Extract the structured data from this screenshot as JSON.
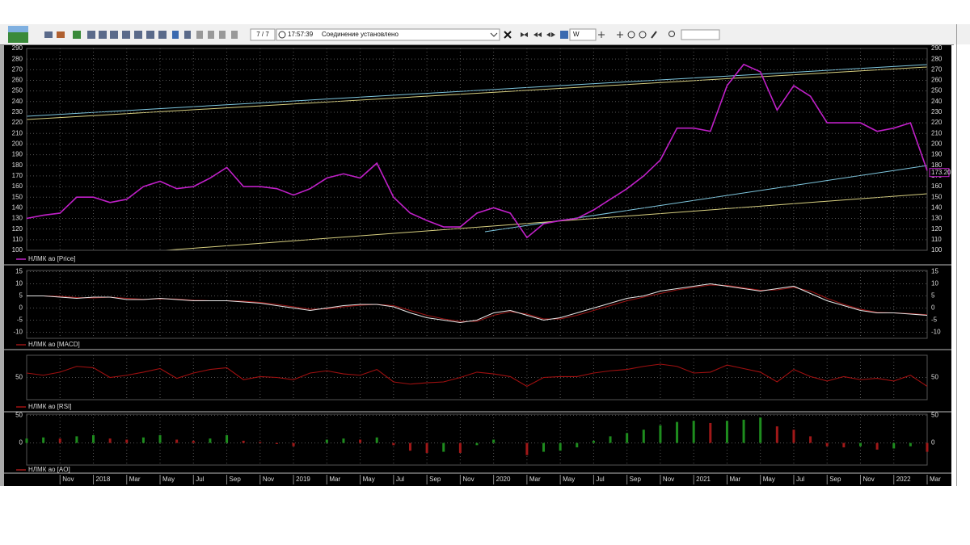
{
  "toolbar": {
    "counter": "7 / 7",
    "time": "17:57:39",
    "status": "Соединение установлено",
    "period": "W"
  },
  "chart_data": [
    {
      "type": "line",
      "series": [
        {
          "name": "НЛМК ао [Price]",
          "color": "#c020c8",
          "values": [
            130,
            133,
            135,
            150,
            150,
            145,
            148,
            160,
            165,
            158,
            160,
            168,
            178,
            160,
            160,
            158,
            152,
            158,
            168,
            172,
            168,
            182,
            150,
            135,
            128,
            122,
            122,
            135,
            140,
            135,
            112,
            125,
            128,
            130,
            138,
            148,
            158,
            170,
            185,
            215,
            215,
            212,
            255,
            275,
            268,
            232,
            255,
            245,
            220,
            220,
            220,
            212,
            215,
            220,
            175
          ]
        }
      ],
      "ylim": [
        100,
        290
      ],
      "yticks": [
        100,
        110,
        120,
        130,
        140,
        150,
        160,
        170,
        180,
        190,
        200,
        210,
        220,
        230,
        240,
        250,
        260,
        270,
        280,
        290
      ],
      "grid": true,
      "last_label": {
        "value": 173.2,
        "label": "173.20"
      }
    },
    {
      "type": "line",
      "series": [
        {
          "name": "НЛМК ао [MACD]",
          "color": "#9a1414",
          "values": [
            5,
            5,
            4.8,
            4.3,
            4.2,
            4.5,
            4,
            3.6,
            3.8,
            3.7,
            3.2,
            3,
            3,
            2.8,
            2.3,
            1.5,
            0.5,
            -0.5,
            -0.3,
            0.5,
            1.2,
            1.5,
            1,
            -1,
            -3,
            -4.5,
            -5.5,
            -5.5,
            -3,
            -1.5,
            -2.5,
            -4.5,
            -4.5,
            -3,
            -1,
            1,
            3,
            4.5,
            6,
            7.5,
            8.5,
            9.5,
            9.3,
            8.3,
            7.3,
            7.5,
            8.5,
            7,
            4,
            1.5,
            -0.5,
            -1.8,
            -2,
            -2.3,
            -2.8
          ]
        },
        {
          "color": "#e6e6e6",
          "values": [
            5,
            5,
            4.5,
            4,
            4.5,
            4.5,
            3.5,
            3.5,
            4,
            3.5,
            3,
            3,
            3,
            2.5,
            2,
            1,
            0,
            -1,
            0,
            1,
            1.5,
            1.5,
            0.5,
            -2,
            -4,
            -5,
            -6,
            -5,
            -2,
            -1,
            -3,
            -5,
            -4,
            -2,
            0,
            2,
            4,
            5,
            7,
            8,
            9,
            10,
            9,
            8,
            7,
            8,
            9,
            6,
            3,
            1,
            -1,
            -2,
            -2,
            -2.5,
            -3
          ]
        }
      ],
      "ylim": [
        -12.5,
        15.5
      ],
      "yticks": [
        -10,
        -5,
        0,
        5,
        10,
        15
      ],
      "grid": true
    },
    {
      "type": "line",
      "series": [
        {
          "name": "НЛМК ао [RSI]",
          "color": "#a01010",
          "values": [
            60,
            55,
            62,
            75,
            72,
            50,
            55,
            62,
            70,
            48,
            60,
            68,
            72,
            45,
            52,
            50,
            45,
            60,
            65,
            58,
            55,
            68,
            40,
            35,
            38,
            40,
            50,
            62,
            58,
            52,
            30,
            50,
            52,
            52,
            60,
            65,
            68,
            75,
            80,
            75,
            60,
            62,
            78,
            70,
            62,
            40,
            68,
            52,
            42,
            52,
            45,
            48,
            42,
            55,
            30
          ]
        }
      ],
      "ylim": [
        0,
        100
      ],
      "yticks": [
        50
      ],
      "grid": true
    },
    {
      "type": "bar",
      "series": [
        {
          "name": "НЛМК ао [AO]",
          "values": [
            8,
            10,
            8,
            12,
            14,
            8,
            6,
            10,
            14,
            6,
            4,
            8,
            14,
            4,
            2,
            -2,
            -6,
            0,
            6,
            8,
            6,
            10,
            -4,
            -14,
            -18,
            -16,
            -18,
            -4,
            6,
            0,
            -22,
            -16,
            -14,
            -8,
            4,
            12,
            18,
            24,
            32,
            38,
            40,
            36,
            40,
            42,
            46,
            30,
            24,
            12,
            -6,
            -8,
            -6,
            -12,
            -10,
            -6,
            -16
          ]
        }
      ],
      "up_color": "#1e8c1e",
      "down_color": "#a01818",
      "ylim": [
        -40,
        52
      ],
      "yticks": [
        0,
        50
      ],
      "grid": true,
      "categories": [
        null,
        null,
        "Nov",
        null,
        "2018",
        null,
        "Mar",
        null,
        "May",
        null,
        "Jul",
        null,
        "Sep",
        null,
        "Nov",
        null,
        "2019",
        null,
        "Mar",
        null,
        "May",
        null,
        "Jul",
        null,
        "Sep",
        null,
        "Nov",
        null,
        "2020",
        null,
        "Mar",
        null,
        "May",
        null,
        "Jul",
        null,
        "Sep",
        null,
        "Nov",
        null,
        "2021",
        null,
        "Mar",
        null,
        "May",
        null,
        "Jul",
        null,
        "Sep",
        null,
        "Nov",
        null,
        "2022",
        null,
        "Mar"
      ]
    }
  ]
}
